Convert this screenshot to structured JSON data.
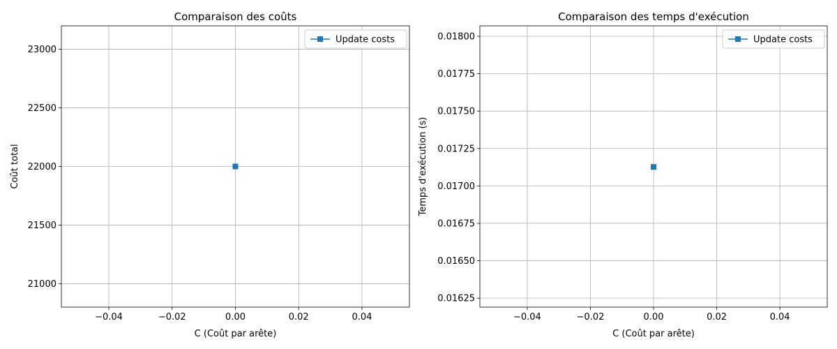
{
  "chart_data": [
    {
      "type": "line",
      "title": "Comparaison des coûts",
      "xlabel": "C (Coût par arête)",
      "ylabel": "Coût total",
      "xlim": [
        -0.055,
        0.055
      ],
      "ylim": [
        20800,
        23200
      ],
      "xticks": [
        -0.04,
        -0.02,
        0.0,
        0.02,
        0.04
      ],
      "xtick_labels": [
        "−0.04",
        "−0.02",
        "0.00",
        "0.02",
        "0.04"
      ],
      "yticks": [
        21000,
        21500,
        22000,
        22500,
        23000
      ],
      "ytick_labels": [
        "21000",
        "21500",
        "22000",
        "22500",
        "23000"
      ],
      "grid": true,
      "legend_position": "top-right",
      "series": [
        {
          "name": "Update costs",
          "color": "#1f77b4",
          "marker": "square",
          "x": [
            0.0
          ],
          "y": [
            22000
          ]
        }
      ]
    },
    {
      "type": "line",
      "title": "Comparaison des temps d'exécution",
      "xlabel": "C (Coût par arête)",
      "ylabel": "Temps d'exécution (s)",
      "xlim": [
        -0.055,
        0.055
      ],
      "ylim": [
        0.01619,
        0.01807
      ],
      "xticks": [
        -0.04,
        -0.02,
        0.0,
        0.02,
        0.04
      ],
      "xtick_labels": [
        "−0.04",
        "−0.02",
        "0.00",
        "0.02",
        "0.04"
      ],
      "yticks": [
        0.01625,
        0.0165,
        0.01675,
        0.017,
        0.01725,
        0.0175,
        0.01775,
        0.018
      ],
      "ytick_labels": [
        "0.01625",
        "0.01650",
        "0.01675",
        "0.01700",
        "0.01725",
        "0.01750",
        "0.01775",
        "0.01800"
      ],
      "grid": true,
      "legend_position": "top-right",
      "series": [
        {
          "name": "Update costs",
          "color": "#1f77b4",
          "marker": "square",
          "x": [
            0.0
          ],
          "y": [
            0.017127
          ]
        }
      ]
    }
  ]
}
